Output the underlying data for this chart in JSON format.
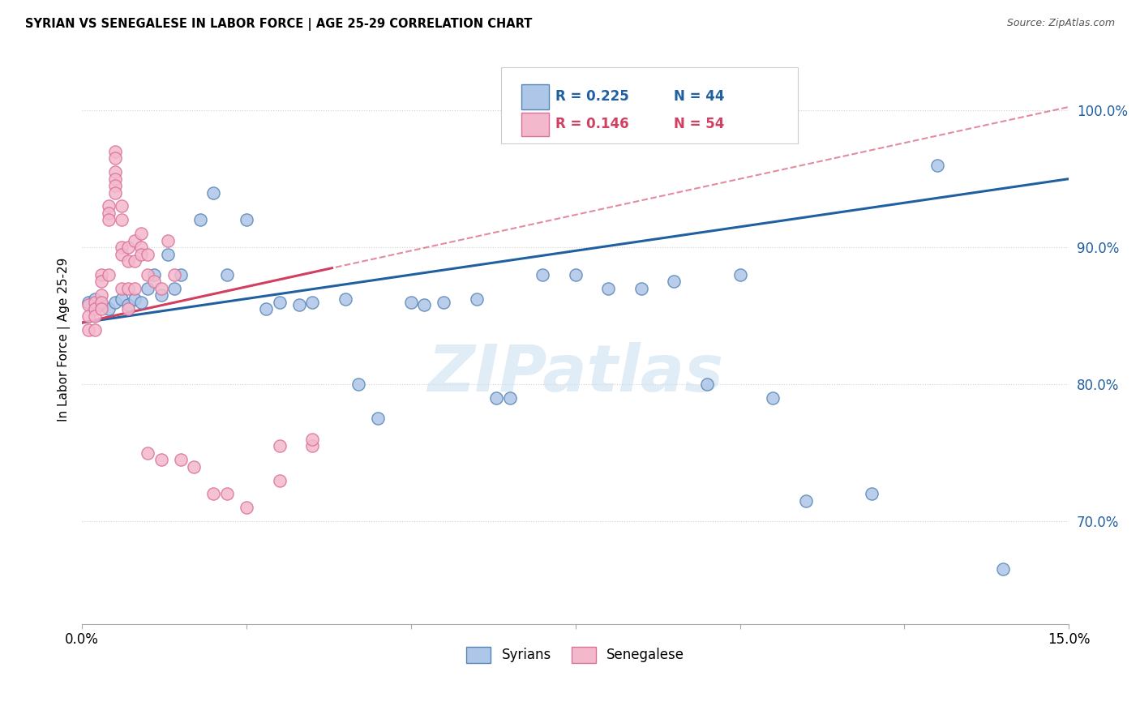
{
  "title": "SYRIAN VS SENEGALESE IN LABOR FORCE | AGE 25-29 CORRELATION CHART",
  "source": "Source: ZipAtlas.com",
  "ylabel": "In Labor Force | Age 25-29",
  "y_ticks": [
    0.7,
    0.8,
    0.9,
    1.0
  ],
  "y_tick_labels": [
    "70.0%",
    "80.0%",
    "90.0%",
    "100.0%"
  ],
  "x_range": [
    0.0,
    0.15
  ],
  "y_range": [
    0.625,
    1.04
  ],
  "legend_blue_r": "R = 0.225",
  "legend_blue_n": "N = 44",
  "legend_pink_r": "R = 0.146",
  "legend_pink_n": "N = 54",
  "legend_label_blue": "Syrians",
  "legend_label_pink": "Senegalese",
  "blue_fill": "#aec6e8",
  "blue_edge": "#5585b5",
  "pink_fill": "#f4b8cc",
  "pink_edge": "#d9719a",
  "blue_line": "#2060a0",
  "pink_solid_line": "#d04060",
  "pink_dash_line": "#d04060",
  "watermark": "ZIPatlas",
  "blue_x": [
    0.001,
    0.002,
    0.003,
    0.004,
    0.005,
    0.006,
    0.007,
    0.008,
    0.009,
    0.01,
    0.011,
    0.012,
    0.013,
    0.014,
    0.015,
    0.018,
    0.02,
    0.022,
    0.025,
    0.028,
    0.03,
    0.033,
    0.035,
    0.04,
    0.042,
    0.045,
    0.05,
    0.052,
    0.055,
    0.06,
    0.063,
    0.065,
    0.07,
    0.075,
    0.08,
    0.085,
    0.09,
    0.095,
    0.1,
    0.105,
    0.11,
    0.12,
    0.13,
    0.14
  ],
  "blue_y": [
    0.86,
    0.862,
    0.858,
    0.855,
    0.86,
    0.862,
    0.858,
    0.862,
    0.86,
    0.87,
    0.88,
    0.865,
    0.895,
    0.87,
    0.88,
    0.92,
    0.94,
    0.88,
    0.92,
    0.855,
    0.86,
    0.858,
    0.86,
    0.862,
    0.8,
    0.775,
    0.86,
    0.858,
    0.86,
    0.862,
    0.79,
    0.79,
    0.88,
    0.88,
    0.87,
    0.87,
    0.875,
    0.8,
    0.88,
    0.79,
    0.715,
    0.72,
    0.96,
    0.665
  ],
  "pink_x": [
    0.001,
    0.001,
    0.001,
    0.002,
    0.002,
    0.002,
    0.002,
    0.003,
    0.003,
    0.003,
    0.003,
    0.003,
    0.004,
    0.004,
    0.004,
    0.004,
    0.005,
    0.005,
    0.005,
    0.005,
    0.005,
    0.005,
    0.006,
    0.006,
    0.006,
    0.006,
    0.006,
    0.007,
    0.007,
    0.007,
    0.007,
    0.008,
    0.008,
    0.008,
    0.009,
    0.009,
    0.009,
    0.01,
    0.01,
    0.011,
    0.012,
    0.013,
    0.014,
    0.015,
    0.017,
    0.02,
    0.022,
    0.025,
    0.03,
    0.035,
    0.01,
    0.012,
    0.03,
    0.035
  ],
  "pink_y": [
    0.858,
    0.85,
    0.84,
    0.86,
    0.855,
    0.85,
    0.84,
    0.88,
    0.875,
    0.865,
    0.86,
    0.855,
    0.93,
    0.925,
    0.92,
    0.88,
    0.97,
    0.965,
    0.955,
    0.95,
    0.945,
    0.94,
    0.93,
    0.92,
    0.9,
    0.895,
    0.87,
    0.9,
    0.89,
    0.87,
    0.855,
    0.905,
    0.89,
    0.87,
    0.91,
    0.9,
    0.895,
    0.895,
    0.88,
    0.875,
    0.87,
    0.905,
    0.88,
    0.745,
    0.74,
    0.72,
    0.72,
    0.71,
    0.73,
    0.755,
    0.75,
    0.745,
    0.755,
    0.76
  ]
}
